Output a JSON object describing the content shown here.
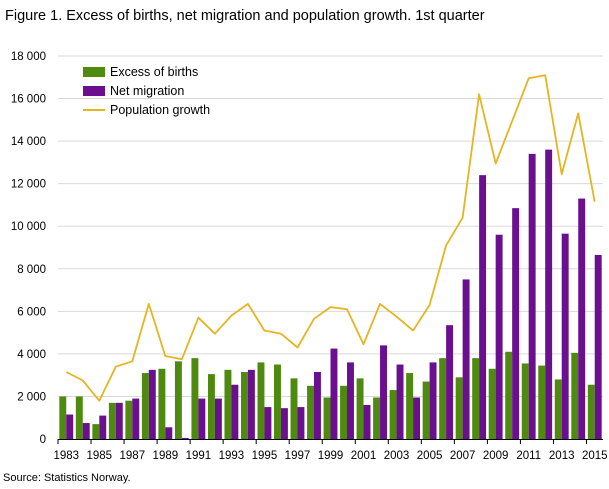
{
  "title": "Figure 1. Excess of births, net migration and population growth. 1st quarter",
  "source": "Source: Statistics Norway.",
  "colors": {
    "births": "#4f8a10",
    "migration": "#6a0f8e",
    "growth": "#e7b421",
    "grid": "#d9d9d9",
    "axis": "#000000"
  },
  "chart_data": {
    "type": "bar",
    "x": [
      1983,
      1984,
      1985,
      1986,
      1987,
      1988,
      1989,
      1990,
      1991,
      1992,
      1993,
      1994,
      1995,
      1996,
      1997,
      1998,
      1999,
      2000,
      2001,
      2002,
      2003,
      2004,
      2005,
      2006,
      2007,
      2008,
      2009,
      2010,
      2011,
      2012,
      2013,
      2014,
      2015
    ],
    "x_tick_labels": [
      "1983",
      "1985",
      "1987",
      "1989",
      "1991",
      "1993",
      "1995",
      "1997",
      "1999",
      "2001",
      "2003",
      "2005",
      "2007",
      "2009",
      "2011",
      "2013",
      "2015"
    ],
    "y_tick_labels": [
      "0",
      "2 000",
      "4 000",
      "6 000",
      "8 000",
      "10 000",
      "12 000",
      "14 000",
      "16 000",
      "18 000"
    ],
    "ylim": [
      0,
      18000
    ],
    "grid": true,
    "legend_position": "top-left",
    "series": [
      {
        "name": "Excess of births",
        "type": "bar",
        "color": "#4f8a10",
        "values": [
          2000,
          2000,
          700,
          1700,
          1800,
          3100,
          3300,
          3650,
          3800,
          3050,
          3250,
          3150,
          3600,
          3500,
          2850,
          2500,
          1950,
          2500,
          2850,
          1950,
          2300,
          3100,
          2700,
          3800,
          2900,
          3800,
          3300,
          4100,
          3550,
          3450,
          2800,
          4050,
          2550
        ]
      },
      {
        "name": "Net migration",
        "type": "bar",
        "color": "#6a0f8e",
        "values": [
          1150,
          750,
          1100,
          1700,
          1900,
          3250,
          550,
          50,
          1900,
          1900,
          2550,
          3250,
          1500,
          1450,
          1500,
          3150,
          4250,
          3600,
          1600,
          4400,
          3500,
          1950,
          3600,
          5350,
          7500,
          12400,
          9600,
          10850,
          13400,
          13600,
          9650,
          11300,
          8650
        ]
      },
      {
        "name": "Population growth",
        "type": "line",
        "color": "#e7b421",
        "values": [
          3150,
          2750,
          1800,
          3400,
          3650,
          6350,
          3900,
          3750,
          5700,
          4950,
          5800,
          6350,
          5100,
          4950,
          4300,
          5650,
          6200,
          6100,
          4450,
          6350,
          5750,
          5100,
          6300,
          9100,
          10400,
          16200,
          12950,
          14950,
          16950,
          17100,
          12450,
          15300,
          11150
        ]
      }
    ]
  }
}
